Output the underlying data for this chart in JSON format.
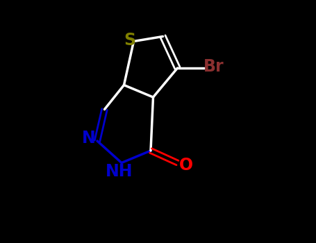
{
  "background_color": "#000000",
  "sulfur_color": "#808000",
  "nitrogen_color": "#0000CD",
  "oxygen_color": "#FF0000",
  "bromine_color": "#8B3030",
  "bond_color": "#FFFFFF",
  "label_S": "S",
  "label_N": "N",
  "label_NH": "NH",
  "label_O": "O",
  "label_Br": "Br",
  "figsize": [
    4.55,
    3.5
  ],
  "dpi": 100
}
